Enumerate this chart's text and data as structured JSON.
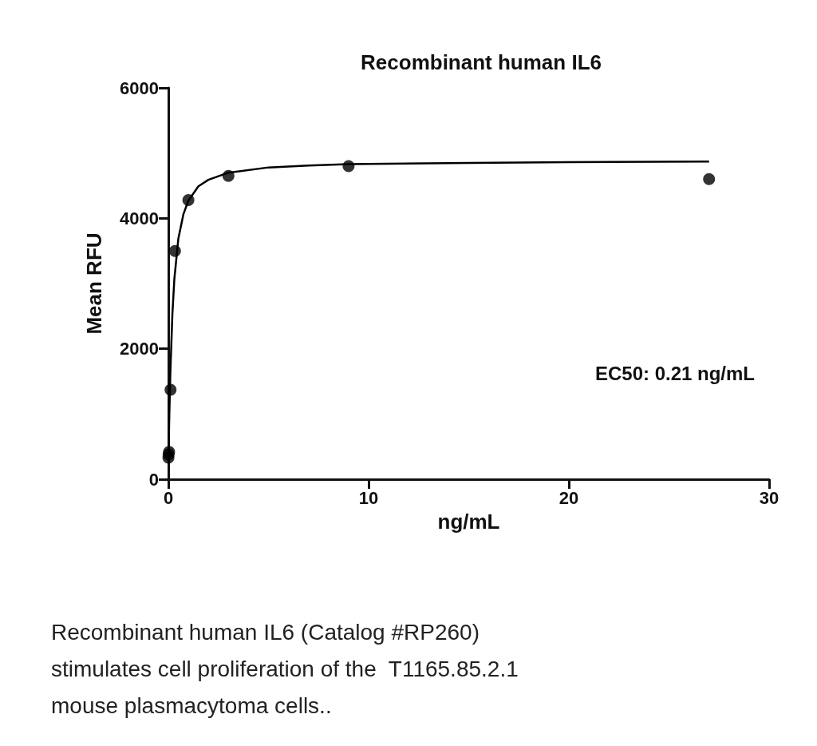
{
  "chart_data": {
    "type": "scatter",
    "title": "Recombinant human IL6",
    "xlabel": "ng/mL",
    "ylabel": "Mean RFU",
    "series": [
      {
        "color": "#000000",
        "marker": "circle",
        "x": [
          0.004,
          0.012,
          0.037,
          0.11,
          0.33,
          1,
          3,
          9,
          27
        ],
        "values": [
          330,
          380,
          420,
          1370,
          3500,
          4280,
          4650,
          4800,
          4600
        ]
      },
      {
        "type": "line",
        "color": "#000000",
        "x": [
          0,
          0.02,
          0.05,
          0.1,
          0.2,
          0.3,
          0.5,
          0.75,
          1,
          1.5,
          2,
          3,
          5,
          7,
          9,
          15,
          20,
          27
        ],
        "values": [
          300,
          560,
          1000,
          1630,
          2520,
          3070,
          3690,
          4060,
          4270,
          4490,
          4590,
          4700,
          4780,
          4810,
          4830,
          4850,
          4860,
          4870
        ]
      }
    ],
    "xlim": [
      0,
      30
    ],
    "xticks": [
      0,
      10,
      20,
      30
    ],
    "ylim": [
      0,
      6000
    ],
    "yticks": [
      0,
      2000,
      4000,
      6000
    ],
    "grid": false,
    "annotations": [
      "EC50: 0.21 ng/mL",
      "Recombinant human IL6 (Catalog #RP260) stimulates cell proliferation of the  T1165.85.2.1 mouse plasmacytoma cells.."
    ]
  }
}
